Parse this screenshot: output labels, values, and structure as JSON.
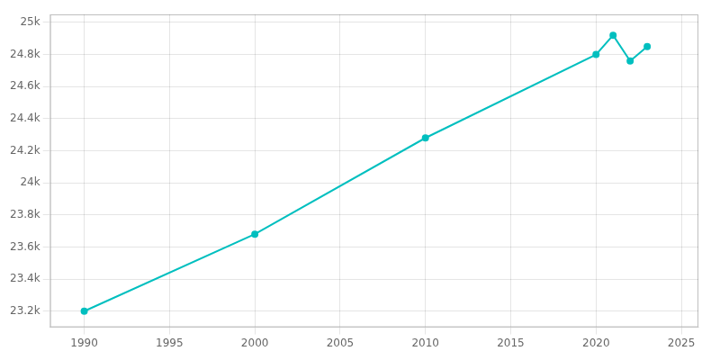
{
  "chart_data": {
    "type": "line",
    "x": [
      1990,
      2000,
      2010,
      2020,
      2021,
      2022,
      2023
    ],
    "values": [
      23200,
      23680,
      24280,
      24800,
      24920,
      24760,
      24850
    ],
    "color": "#00BFBF",
    "marker": "circle",
    "xlim": [
      1988,
      2026
    ],
    "xticks": [
      1990,
      1995,
      2000,
      2005,
      2010,
      2015,
      2020,
      2025
    ],
    "ylim": [
      23100,
      25050
    ],
    "yticks": [
      {
        "value": 23200,
        "label": "23.2k"
      },
      {
        "value": 23400,
        "label": "23.4k"
      },
      {
        "value": 23600,
        "label": "23.6k"
      },
      {
        "value": 23800,
        "label": "23.8k"
      },
      {
        "value": 24000,
        "label": "24k"
      },
      {
        "value": 24200,
        "label": "24.2k"
      },
      {
        "value": 24400,
        "label": "24.4k"
      },
      {
        "value": 24600,
        "label": "24.6k"
      },
      {
        "value": 24800,
        "label": "24.8k"
      },
      {
        "value": 25000,
        "label": "25k"
      }
    ],
    "grid": true
  }
}
